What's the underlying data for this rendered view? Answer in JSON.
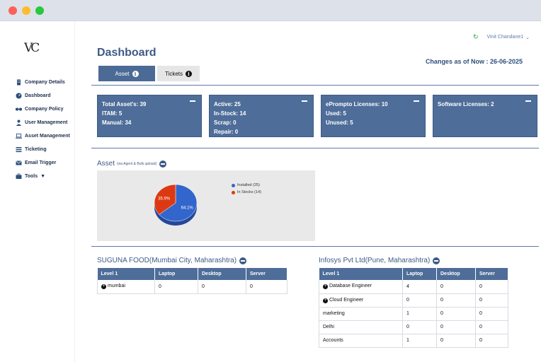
{
  "window": {
    "controls": [
      "close",
      "minimize",
      "maximize"
    ]
  },
  "sidebar": {
    "logo": "VC",
    "items": [
      {
        "label": "Company Details",
        "icon": "building-icon"
      },
      {
        "label": "Dashboard",
        "icon": "dashboard-icon"
      },
      {
        "label": "Company Policy",
        "icon": "handshake-icon"
      },
      {
        "label": "User Management",
        "icon": "user-icon"
      },
      {
        "label": "Asset Management",
        "icon": "laptop-icon"
      },
      {
        "label": "Ticketing",
        "icon": "ticket-icon"
      },
      {
        "label": "Email Trigger",
        "icon": "envelope-icon"
      },
      {
        "label": "Tools",
        "icon": "briefcase-icon"
      }
    ]
  },
  "header": {
    "user": "Vinit Chandane1",
    "title": "Dashboard",
    "changes": "Changes as of Now : 26-06-2025",
    "tabs": [
      {
        "label": "Asset"
      },
      {
        "label": "Tickets"
      }
    ]
  },
  "cards": [
    {
      "lines": [
        "Total Asset's: 39",
        "ITAM: 5",
        "Manual: 34"
      ]
    },
    {
      "lines": [
        "Active: 25",
        "In-Stock: 14",
        "Scrap: 0",
        "Repair: 0"
      ]
    },
    {
      "lines": [
        "ePrompto Licenses: 10",
        "Used: 5",
        "Unused: 5"
      ]
    },
    {
      "lines": [
        "Software Licenses: 2"
      ]
    }
  ],
  "asset_section": {
    "title": "Asset",
    "subtitle": "(via Agent & Bulk upload)"
  },
  "chart_data": {
    "type": "pie",
    "categories": [
      "Installed (25)",
      "In Stocks (14)"
    ],
    "values": [
      64.1,
      35.9
    ],
    "data_labels": [
      "64.1%",
      "35.9%"
    ],
    "colors": [
      "#3366cc",
      "#dc3912"
    ],
    "legend": "right"
  },
  "tables": [
    {
      "title": "SUGUNA FOOD(Mumbai City, Maharashtra)",
      "headers": [
        "Level 1",
        "Laptop",
        "Desktop",
        "Server"
      ],
      "rows": [
        {
          "expandable": true,
          "cells": [
            "mumbai",
            "0",
            "0",
            "0"
          ]
        }
      ]
    },
    {
      "title": "Infosys Pvt Ltd(Pune, Maharashtra)",
      "headers": [
        "Level 1",
        "Laptop",
        "Desktop",
        "Server"
      ],
      "rows": [
        {
          "expandable": true,
          "cells": [
            "Database Engineer",
            "4",
            "0",
            "0"
          ]
        },
        {
          "expandable": true,
          "cells": [
            "Cloud Engineer",
            "0",
            "0",
            "0"
          ]
        },
        {
          "expandable": false,
          "cells": [
            "marketing",
            "1",
            "0",
            "0"
          ]
        },
        {
          "expandable": false,
          "cells": [
            "Delhi",
            "0",
            "0",
            "0"
          ]
        },
        {
          "expandable": false,
          "cells": [
            "Accounts",
            "1",
            "0",
            "0"
          ]
        }
      ]
    }
  ]
}
